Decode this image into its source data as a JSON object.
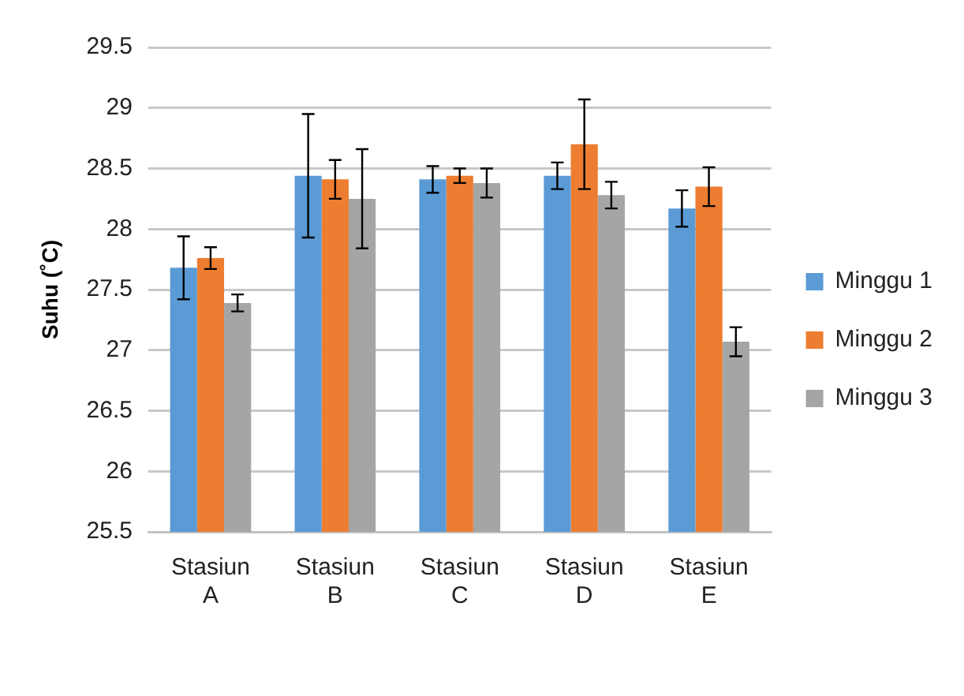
{
  "chart_data": {
    "type": "bar",
    "ylabel": "Suhu (˚C)",
    "categories": [
      "Stasiun A",
      "Stasiun B",
      "Stasiun C",
      "Stasiun D",
      "Stasiun E"
    ],
    "series": [
      {
        "name": "Minggu 1",
        "color": "#5b9bd5",
        "values": [
          27.68,
          28.44,
          28.41,
          28.44,
          28.17
        ],
        "errors": [
          0.26,
          0.51,
          0.11,
          0.11,
          0.15
        ]
      },
      {
        "name": "Minggu 2",
        "color": "#ed7d31",
        "values": [
          27.76,
          28.41,
          28.44,
          28.7,
          28.35
        ],
        "errors": [
          0.09,
          0.16,
          0.06,
          0.37,
          0.16
        ]
      },
      {
        "name": "Minggu 3",
        "color": "#a5a5a5",
        "values": [
          27.39,
          28.25,
          28.38,
          28.28,
          27.07
        ],
        "errors": [
          0.07,
          0.41,
          0.12,
          0.11,
          0.12
        ]
      }
    ],
    "ylim": [
      25.5,
      29.5
    ],
    "yticks": [
      25.5,
      26,
      26.5,
      27,
      27.5,
      28,
      28.5,
      29,
      29.5
    ],
    "grid": "y",
    "legend": "right"
  }
}
